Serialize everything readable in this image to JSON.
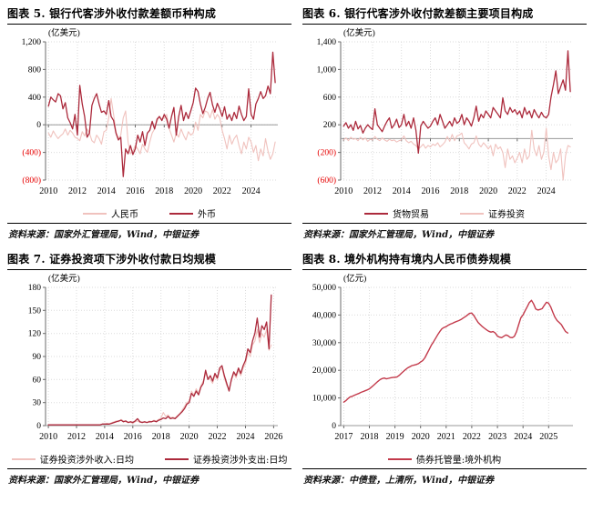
{
  "report": {
    "colors": {
      "dark_red": "#AC2A3C",
      "pink": "#F0C2BE",
      "bright_red": "#C33A4B",
      "grid": "#DBDBDB",
      "axis": "#6B6B6B",
      "zero_line": "#9A9A9A",
      "neg_tick": "#E60000",
      "tick_text": "#000000"
    }
  },
  "sources": [
    "资料来源：国家外汇管理局，Wind，中银证券",
    "资料来源：国家外汇管理局，Wind，中银证券",
    "资料来源：国家外汇管理局，Wind，中银证券",
    "资料来源：中债登，上清所，Wind，中银证券"
  ],
  "chart_data": [
    {
      "type": "line",
      "title": "图表 5. 银行代客涉外收付款差额币种构成",
      "unit": "(亿美元)",
      "ylim": [
        -800,
        1200
      ],
      "xlim": [
        2009.8,
        2025.85
      ],
      "yticks": [
        {
          "v": 1200,
          "t": "1,200",
          "neg": false
        },
        {
          "v": 800,
          "t": "800",
          "neg": false
        },
        {
          "v": 400,
          "t": "400",
          "neg": false
        },
        {
          "v": 0,
          "t": "0",
          "neg": false
        },
        {
          "v": -400,
          "t": "(400)",
          "neg": true
        },
        {
          "v": -800,
          "t": "(800)",
          "neg": true
        }
      ],
      "xticks": [
        {
          "v": 2010,
          "t": "2010"
        },
        {
          "v": 2012,
          "t": "2012"
        },
        {
          "v": 2014,
          "t": "2014"
        },
        {
          "v": 2016,
          "t": "2016"
        },
        {
          "v": 2018,
          "t": "2018"
        },
        {
          "v": 2020,
          "t": "2020"
        },
        {
          "v": 2022,
          "t": "2022"
        },
        {
          "v": 2024,
          "t": "2024"
        }
      ],
      "x_start": 2010.0,
      "x_step": 0.1667,
      "draw_order": [
        0,
        1
      ],
      "series": [
        {
          "name": "人民币",
          "color": "#F0C2BE",
          "stroke_w": 1.1,
          "values": [
            -120,
            -180,
            -90,
            -150,
            -200,
            -160,
            -130,
            -60,
            -150,
            -80,
            -120,
            -180,
            -200,
            -230,
            -100,
            -160,
            -60,
            -120,
            -230,
            -260,
            -150,
            -200,
            -280,
            -100,
            -80,
            100,
            380,
            150,
            -100,
            -200,
            -150,
            100,
            200,
            -250,
            -420,
            -380,
            -300,
            -350,
            -420,
            -280,
            -350,
            -400,
            -250,
            -120,
            -60,
            50,
            120,
            80,
            100,
            150,
            -50,
            -150,
            -250,
            -120,
            -180,
            -60,
            -150,
            -220,
            -100,
            -150,
            -120,
            40,
            -80,
            150,
            100,
            200,
            180,
            100,
            220,
            80,
            150,
            100,
            -80,
            -200,
            -350,
            -150,
            -280,
            -200,
            -150,
            -300,
            -420,
            -250,
            -350,
            -180,
            -250,
            -400,
            -300,
            -520,
            -350,
            -450,
            -200,
            -380,
            -500,
            -420,
            -250
          ]
        },
        {
          "name": "外币",
          "color": "#AC2A3C",
          "stroke_w": 1.3,
          "values": [
            270,
            400,
            360,
            330,
            450,
            420,
            230,
            320,
            100,
            30,
            -60,
            150,
            -150,
            570,
            300,
            120,
            -180,
            -120,
            280,
            380,
            450,
            300,
            180,
            200,
            150,
            350,
            120,
            60,
            -120,
            -220,
            -180,
            -750,
            -350,
            -420,
            -300,
            -430,
            -350,
            -150,
            -250,
            -100,
            -300,
            -120,
            -80,
            50,
            -60,
            80,
            120,
            60,
            150,
            80,
            -50,
            120,
            250,
            -150,
            120,
            280,
            60,
            180,
            90,
            200,
            320,
            530,
            480,
            300,
            160,
            250,
            380,
            470,
            290,
            180,
            310,
            230,
            120,
            260,
            80,
            150,
            60,
            180,
            90,
            270,
            150,
            60,
            120,
            520,
            150,
            80,
            300,
            380,
            480,
            380,
            420,
            560,
            450,
            1050,
            610
          ]
        }
      ]
    },
    {
      "type": "line",
      "title": "图表 6. 银行代客涉外收付款差额主要项目构成",
      "unit": "(亿美元)",
      "ylim": [
        -600,
        1400
      ],
      "xlim": [
        2009.8,
        2025.85
      ],
      "yticks": [
        {
          "v": 1400,
          "t": "1,400",
          "neg": false
        },
        {
          "v": 1000,
          "t": "1,000",
          "neg": false
        },
        {
          "v": 600,
          "t": "600",
          "neg": false
        },
        {
          "v": 200,
          "t": "200",
          "neg": false
        },
        {
          "v": -200,
          "t": "(200)",
          "neg": true
        },
        {
          "v": -600,
          "t": "(600)",
          "neg": true
        }
      ],
      "xticks": [
        {
          "v": 2010,
          "t": "2010"
        },
        {
          "v": 2012,
          "t": "2012"
        },
        {
          "v": 2014,
          "t": "2014"
        },
        {
          "v": 2016,
          "t": "2016"
        },
        {
          "v": 2018,
          "t": "2018"
        },
        {
          "v": 2020,
          "t": "2020"
        },
        {
          "v": 2022,
          "t": "2022"
        },
        {
          "v": 2024,
          "t": "2024"
        }
      ],
      "x_start": 2010.0,
      "x_step": 0.1667,
      "draw_order": [
        1,
        0
      ],
      "series": [
        {
          "name": "货物贸易",
          "color": "#AC2A3C",
          "stroke_w": 1.3,
          "values": [
            180,
            230,
            150,
            200,
            120,
            250,
            140,
            190,
            80,
            150,
            200,
            160,
            130,
            430,
            200,
            150,
            100,
            180,
            250,
            300,
            150,
            200,
            280,
            160,
            200,
            350,
            180,
            250,
            150,
            300,
            120,
            -210,
            180,
            250,
            200,
            150,
            180,
            250,
            300,
            200,
            350,
            250,
            150,
            200,
            250,
            180,
            300,
            220,
            250,
            350,
            200,
            300,
            250,
            180,
            300,
            470,
            250,
            350,
            300,
            400,
            350,
            300,
            450,
            400,
            350,
            300,
            590,
            400,
            350,
            450,
            380,
            420,
            350,
            400,
            300,
            450,
            350,
            400,
            300,
            420,
            350,
            300,
            380,
            320,
            300,
            350,
            600,
            780,
            980,
            650,
            750,
            850,
            700,
            1270,
            680
          ]
        },
        {
          "name": "证券投资",
          "color": "#F0C2BE",
          "stroke_w": 1.1,
          "values": [
            -20,
            10,
            -30,
            20,
            -10,
            0,
            -30,
            20,
            -20,
            10,
            -40,
            -10,
            -20,
            30,
            -10,
            -30,
            10,
            -20,
            -40,
            -10,
            -30,
            -20,
            -50,
            -30,
            -20,
            40,
            -30,
            -60,
            -40,
            -80,
            -100,
            -150,
            -120,
            -80,
            -140,
            -100,
            -120,
            -80,
            -100,
            -60,
            -120,
            -90,
            -50,
            30,
            -40,
            60,
            -30,
            40,
            50,
            80,
            -60,
            -100,
            -150,
            -80,
            -60,
            40,
            -80,
            -120,
            -60,
            -100,
            -150,
            -100,
            -250,
            -80,
            -150,
            -120,
            -200,
            -420,
            -150,
            -300,
            -250,
            -350,
            -280,
            -200,
            -350,
            -150,
            -300,
            -250,
            120,
            -150,
            -250,
            -100,
            -300,
            -200,
            150,
            -250,
            -450,
            -200,
            -350,
            -300,
            -150,
            -600,
            -250,
            -100,
            -120
          ]
        }
      ]
    },
    {
      "type": "line",
      "title": "图表 7. 证券投资项下涉外收付款日均规模",
      "unit": "(亿美元)",
      "ylim": [
        0,
        180
      ],
      "xlim": [
        2009.8,
        2026.3
      ],
      "yticks": [
        {
          "v": 180,
          "t": "180",
          "neg": false
        },
        {
          "v": 150,
          "t": "150",
          "neg": false
        },
        {
          "v": 120,
          "t": "120",
          "neg": false
        },
        {
          "v": 90,
          "t": "90",
          "neg": false
        },
        {
          "v": 60,
          "t": "60",
          "neg": false
        },
        {
          "v": 30,
          "t": "30",
          "neg": false
        },
        {
          "v": 0,
          "t": "0",
          "neg": false
        }
      ],
      "xticks": [
        {
          "v": 2010,
          "t": "2010"
        },
        {
          "v": 2012,
          "t": "2012"
        },
        {
          "v": 2014,
          "t": "2014"
        },
        {
          "v": 2016,
          "t": "2016"
        },
        {
          "v": 2018,
          "t": "2018"
        },
        {
          "v": 2020,
          "t": "2020"
        },
        {
          "v": 2022,
          "t": "2022"
        },
        {
          "v": 2024,
          "t": "2024"
        },
        {
          "v": 2026,
          "t": "2026"
        }
      ],
      "x_start": 2010.0,
      "x_step": 0.1667,
      "draw_order": [
        0,
        1
      ],
      "series": [
        {
          "name": "证券投资涉外收入:日均",
          "color": "#F0C2BE",
          "stroke_w": 1.1,
          "values": [
            1,
            1,
            1,
            1,
            1,
            1,
            1,
            1,
            1,
            1,
            1,
            1,
            1,
            1,
            1,
            1,
            1,
            1,
            1,
            1,
            1,
            1,
            1,
            2,
            2,
            3,
            2,
            4,
            5,
            6,
            5,
            8,
            6,
            5,
            4,
            4,
            3,
            5,
            6,
            4,
            5,
            4,
            4,
            6,
            5,
            7,
            6,
            8,
            10,
            17,
            12,
            14,
            10,
            11,
            10,
            13,
            16,
            20,
            25,
            30,
            32,
            45,
            40,
            48,
            42,
            52,
            58,
            68,
            62,
            60,
            55,
            65,
            60,
            72,
            75,
            62,
            52,
            48,
            58,
            68,
            62,
            72,
            65,
            75,
            80,
            95,
            90,
            105,
            110,
            125,
            108,
            120,
            115,
            125,
            98,
            105
          ]
        },
        {
          "name": "证券投资涉外支出:日均",
          "color": "#AC2A3C",
          "stroke_w": 1.3,
          "values": [
            1,
            1,
            1,
            1,
            1,
            1,
            1,
            1,
            1,
            1,
            1,
            1,
            1,
            1,
            1,
            1,
            1,
            1,
            1,
            1,
            1,
            1,
            1,
            2,
            2,
            2,
            2,
            3,
            4,
            5,
            6,
            7,
            5,
            6,
            4,
            5,
            4,
            6,
            9,
            5,
            4,
            5,
            4,
            5,
            5,
            6,
            5,
            7,
            8,
            10,
            9,
            12,
            9,
            10,
            9,
            12,
            15,
            18,
            22,
            28,
            30,
            42,
            38,
            45,
            40,
            50,
            55,
            72,
            60,
            65,
            58,
            68,
            62,
            75,
            78,
            65,
            55,
            45,
            60,
            70,
            65,
            75,
            68,
            78,
            85,
            100,
            95,
            110,
            120,
            140,
            115,
            130,
            125,
            135,
            100,
            170
          ]
        }
      ]
    },
    {
      "type": "line",
      "title": "图表 8. 境外机构持有境内人民币债券规模",
      "unit": "(亿元)",
      "ylim": [
        0,
        50000
      ],
      "xlim": [
        2016.88,
        2025.95
      ],
      "yticks": [
        {
          "v": 50000,
          "t": "50,000",
          "neg": false
        },
        {
          "v": 40000,
          "t": "40,000",
          "neg": false
        },
        {
          "v": 30000,
          "t": "30,000",
          "neg": false
        },
        {
          "v": 20000,
          "t": "20,000",
          "neg": false
        },
        {
          "v": 10000,
          "t": "10,000",
          "neg": false
        },
        {
          "v": 0,
          "t": "0",
          "neg": false
        }
      ],
      "xticks": [
        {
          "v": 2017,
          "t": "2017"
        },
        {
          "v": 2018,
          "t": "2018"
        },
        {
          "v": 2019,
          "t": "2019"
        },
        {
          "v": 2020,
          "t": "2020"
        },
        {
          "v": 2021,
          "t": "2021"
        },
        {
          "v": 2022,
          "t": "2022"
        },
        {
          "v": 2023,
          "t": "2023"
        },
        {
          "v": 2024,
          "t": "2024"
        },
        {
          "v": 2025,
          "t": "2025"
        }
      ],
      "x_start": 2017.0,
      "x_step": 0.0833,
      "draw_order": [
        0
      ],
      "series": [
        {
          "name": "债券托管量:境外机构",
          "color": "#C33A4B",
          "stroke_w": 1.4,
          "values": [
            8500,
            9000,
            9800,
            10400,
            10600,
            11000,
            11300,
            11600,
            12000,
            12300,
            12600,
            12900,
            13300,
            13900,
            14600,
            15300,
            16000,
            16600,
            17000,
            17200,
            16900,
            17100,
            17300,
            17400,
            17500,
            17600,
            18200,
            18900,
            19600,
            20300,
            20900,
            21300,
            21700,
            21900,
            22100,
            22400,
            23000,
            23500,
            24500,
            26000,
            27500,
            29000,
            30200,
            31500,
            32800,
            34000,
            35000,
            35500,
            35800,
            36300,
            36700,
            37000,
            37400,
            37700,
            38000,
            38400,
            38900,
            39400,
            40000,
            40600,
            40700,
            39800,
            38500,
            37300,
            36500,
            35800,
            35200,
            34600,
            34100,
            33800,
            34000,
            33500,
            32400,
            32000,
            31800,
            32300,
            32800,
            32500,
            31900,
            31800,
            32300,
            34000,
            36500,
            39000,
            40000,
            41500,
            43000,
            44500,
            45300,
            44000,
            42200,
            41800,
            42000,
            42300,
            43500,
            44600,
            44300,
            43000,
            41000,
            39200,
            38000,
            37300,
            36500,
            35200,
            34000,
            33500
          ]
        }
      ]
    }
  ]
}
